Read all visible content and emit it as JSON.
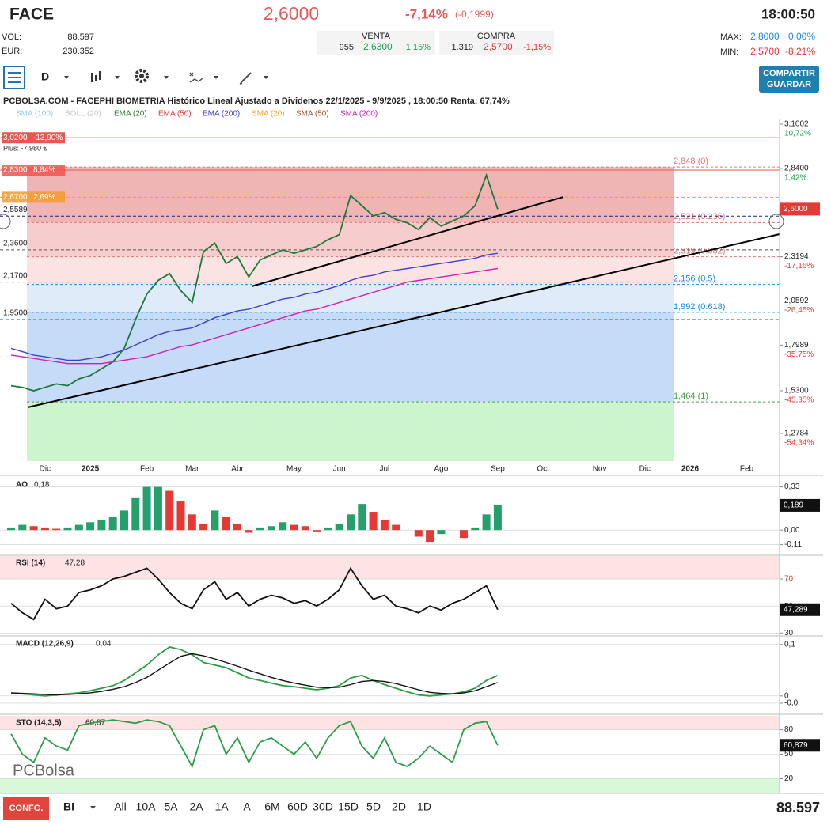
{
  "header": {
    "ticker": "FACE",
    "price": "2,6000",
    "change_pct": "-7,14%",
    "change_abs": "(-0,1999)",
    "time": "18:00:50",
    "vol_label": "VOL:",
    "vol": "88.597",
    "eur_label": "EUR:",
    "eur": "230.352",
    "venta_label": "VENTA",
    "venta_qty": "955",
    "venta_price": "2,6300",
    "venta_pct": "1,15%",
    "compra_label": "COMPRA",
    "compra_qty": "1.319",
    "compra_price": "2,5700",
    "compra_pct": "-1,15%",
    "max_label": "MAX:",
    "max": "2,8000",
    "max_pct": "0,00%",
    "min_label": "MIN:",
    "min": "2,5700",
    "min_pct": "-8,21%"
  },
  "toolbar": {
    "period": "D",
    "share": "COMPARTIR",
    "save": "GUARDAR"
  },
  "footer": {
    "config": "CONFG.",
    "mode": "BI",
    "ranges": [
      "All",
      "10A",
      "5A",
      "2A",
      "1A",
      "A",
      "6M",
      "60D",
      "30D",
      "15D",
      "5D",
      "2D",
      "1D"
    ],
    "volume": "88.597"
  },
  "chart_data": [
    {
      "type": "line",
      "title": "PCBOLSA.COM - FACEPHI BIOMETRIA Histórico Lineal Ajustado a Dividenos 22/1/2025 - 9/9/2025 , 18:00:50 Renta: 67,74%",
      "legend": [
        {
          "label": "SMA (100)",
          "color": "#90caf9"
        },
        {
          "label": "BOLL (20)",
          "color": "#c8c8c8"
        },
        {
          "label": "EMA (20)",
          "color": "#2e7d32"
        },
        {
          "label": "EMA (50)",
          "color": "#e53935"
        },
        {
          "label": "EMA (200)",
          "color": "#3f3fd0"
        },
        {
          "label": "SMA (20)",
          "color": "#f9a825"
        },
        {
          "label": "SMA (50)",
          "color": "#a0522d"
        },
        {
          "label": "SMA (200)",
          "color": "#d020b0"
        }
      ],
      "categories": [
        null,
        null,
        null,
        "Dic",
        null,
        null,
        null,
        "2025",
        null,
        null,
        null,
        null,
        "Feb",
        null,
        null,
        null,
        "Mar",
        null,
        null,
        null,
        "Abr",
        null,
        null,
        null,
        null,
        "May",
        null,
        null,
        null,
        "Jun",
        null,
        null,
        null,
        "Jul",
        null,
        null,
        null,
        null,
        "Ago",
        null,
        null,
        null,
        null,
        "Sep",
        null,
        null,
        null,
        "Oct",
        null,
        null,
        null,
        null,
        "Nov",
        null,
        null,
        null,
        "Dic",
        null,
        null,
        null,
        "2026",
        null,
        null,
        null,
        null,
        "Feb",
        null
      ],
      "series": [
        {
          "color": "#1b7a3a",
          "values": [
            1.56,
            1.55,
            1.53,
            1.55,
            1.57,
            1.56,
            1.6,
            1.62,
            1.66,
            1.7,
            1.78,
            1.95,
            2.1,
            2.18,
            2.22,
            2.12,
            2.05,
            2.35,
            2.4,
            2.28,
            2.32,
            2.2,
            2.3,
            2.33,
            2.36,
            2.34,
            2.36,
            2.38,
            2.42,
            2.45,
            2.68,
            2.62,
            2.56,
            2.58,
            2.54,
            2.52,
            2.48,
            2.55,
            2.5,
            2.53,
            2.56,
            2.62,
            2.8,
            2.6,
            null,
            null,
            null,
            null,
            null,
            null,
            null,
            null,
            null,
            null,
            null,
            null,
            null,
            null,
            null,
            null,
            null,
            null,
            null,
            null,
            null,
            null,
            null
          ]
        },
        {
          "color": "#3f3fd0",
          "values": [
            1.78,
            1.76,
            1.74,
            1.73,
            1.72,
            1.71,
            1.71,
            1.72,
            1.73,
            1.75,
            1.77,
            1.8,
            1.83,
            1.86,
            1.88,
            1.89,
            1.9,
            1.93,
            1.96,
            1.98,
            2.0,
            2.01,
            2.03,
            2.05,
            2.07,
            2.08,
            2.1,
            2.11,
            2.13,
            2.15,
            2.18,
            2.2,
            2.21,
            2.23,
            2.24,
            2.25,
            2.26,
            2.27,
            2.28,
            2.29,
            2.3,
            2.31,
            2.33,
            2.34,
            null,
            null,
            null,
            null,
            null,
            null,
            null,
            null,
            null,
            null,
            null,
            null,
            null,
            null,
            null,
            null,
            null,
            null,
            null,
            null,
            null,
            null,
            null
          ]
        },
        {
          "color": "#d020b0",
          "values": [
            1.74,
            1.73,
            1.72,
            1.71,
            1.7,
            1.69,
            1.69,
            1.69,
            1.69,
            1.7,
            1.71,
            1.72,
            1.73,
            1.75,
            1.77,
            1.79,
            1.8,
            1.82,
            1.84,
            1.86,
            1.88,
            1.9,
            1.92,
            1.94,
            1.96,
            1.98,
            2.0,
            2.01,
            2.03,
            2.05,
            2.07,
            2.09,
            2.11,
            2.13,
            2.15,
            2.17,
            2.18,
            2.19,
            2.2,
            2.21,
            2.22,
            2.23,
            2.24,
            2.25,
            null,
            null,
            null,
            null,
            null,
            null,
            null,
            null,
            null,
            null,
            null,
            null,
            null,
            null,
            null,
            null,
            null,
            null,
            null,
            null,
            null,
            null,
            null
          ]
        }
      ],
      "ylim": [
        1.106,
        3.133
      ],
      "yticks": [
        {
          "value": 3.1002,
          "label": "3,1002"
        },
        {
          "value": 2.84,
          "label": "2,8400"
        },
        {
          "value": 2.3194,
          "label": "2,3194"
        },
        {
          "value": 2.0592,
          "label": "2,0592"
        },
        {
          "value": 1.7989,
          "label": "1,7989"
        },
        {
          "value": 1.53,
          "label": "1,5300"
        },
        {
          "value": 1.2784,
          "label": "1,2784"
        }
      ],
      "ytick_changes": [
        "10,72%",
        "1,42%",
        "-17,16%",
        "-26,45%",
        "-35,75%",
        "-45,35%",
        "-54,34%"
      ],
      "current": {
        "value": 2.6,
        "label": "2,6000"
      },
      "fib_levels": [
        {
          "value": 2.848,
          "label": "2,848 (0)",
          "color": "#e57373"
        },
        {
          "value": 2.521,
          "label": "2,521 (0.236)",
          "color": "#e57373"
        },
        {
          "value": 2.319,
          "label": "2,319 (0.382)",
          "color": "#e57373"
        },
        {
          "value": 2.156,
          "label": "2,156 (0.5)",
          "color": "#1e88e5"
        },
        {
          "value": 1.992,
          "label": "1,992 (0.618)",
          "color": "#1e88e5"
        },
        {
          "value": 1.464,
          "label": "1,464 (1)",
          "color": "#43a047"
        }
      ],
      "left_labels": [
        {
          "value": 3.02,
          "label": "3,0200",
          "note": "-13,90%",
          "color": "#e53935"
        },
        {
          "value": 2.83,
          "label": "2,8300",
          "note": "8,84%",
          "color": "#ef5350"
        },
        {
          "value": 2.67,
          "label": "2,6700",
          "note": "2,69%",
          "color": "#f59b2b"
        },
        {
          "value": 2.5589,
          "label": "2,5589",
          "color": "#1a237e"
        },
        {
          "value": 2.36,
          "label": "2,3600",
          "color": "#555555"
        },
        {
          "value": 2.17,
          "label": "2,1700",
          "color": "#546e7a"
        },
        {
          "value": 1.95,
          "label": "1,9500",
          "color": "#1e88e5"
        }
      ],
      "position_note": "Plus: -7.980 €"
    },
    {
      "type": "bar",
      "title": "AO",
      "title_value": "0,18",
      "color": "#26a06b",
      "down_color": "#e53935",
      "values": [
        0.02,
        0.04,
        0.03,
        0.02,
        0.01,
        0.02,
        0.04,
        0.06,
        0.08,
        0.1,
        0.15,
        0.25,
        0.33,
        0.33,
        0.3,
        0.22,
        0.12,
        0.05,
        0.15,
        0.1,
        0.05,
        -0.02,
        0.02,
        0.03,
        0.06,
        0.04,
        0.03,
        -0.01,
        0.02,
        0.05,
        0.12,
        0.2,
        0.14,
        0.08,
        0.04,
        0.0,
        -0.05,
        -0.09,
        -0.03,
        0.0,
        -0.06,
        0.02,
        0.12,
        0.189
      ],
      "ylim": [
        -0.18,
        0.4
      ],
      "yticks": [
        {
          "value": 0.33,
          "label": "0,33"
        },
        {
          "value": 0,
          "label": "0,00"
        },
        {
          "value": -0.11,
          "label": "-0,11"
        }
      ],
      "current": {
        "value": 0.189,
        "label": "0,189"
      }
    },
    {
      "type": "line",
      "title": "RSI (14)",
      "title_value": "47,28",
      "series": [
        {
          "color": "#111111",
          "values": [
            52,
            45,
            40,
            55,
            48,
            50,
            60,
            62,
            65,
            70,
            72,
            75,
            78,
            70,
            60,
            52,
            48,
            62,
            68,
            55,
            60,
            50,
            55,
            58,
            56,
            52,
            54,
            50,
            55,
            62,
            78,
            65,
            55,
            58,
            50,
            48,
            45,
            50,
            47,
            52,
            55,
            60,
            65,
            47.289
          ]
        }
      ],
      "ylim": [
        29,
        87
      ],
      "yticks": [
        70,
        50,
        30
      ],
      "current": {
        "value": 47.289,
        "label": "47,289"
      }
    },
    {
      "type": "line",
      "title": "MACD (12,26,9)",
      "title_value": "0,04",
      "series": [
        {
          "color": "#2e9d48",
          "values": [
            0.005,
            0.004,
            0.002,
            0.0,
            0.002,
            0.004,
            0.006,
            0.01,
            0.015,
            0.02,
            0.03,
            0.045,
            0.06,
            0.08,
            0.095,
            0.09,
            0.08,
            0.065,
            0.06,
            0.055,
            0.045,
            0.035,
            0.03,
            0.025,
            0.02,
            0.018,
            0.015,
            0.012,
            0.015,
            0.02,
            0.035,
            0.04,
            0.03,
            0.022,
            0.015,
            0.008,
            0.002,
            0.0,
            0.002,
            0.004,
            0.008,
            0.015,
            0.03,
            0.04
          ]
        },
        {
          "color": "#111111",
          "values": [
            0.006,
            0.005,
            0.004,
            0.003,
            0.002,
            0.003,
            0.004,
            0.006,
            0.009,
            0.013,
            0.018,
            0.026,
            0.036,
            0.05,
            0.064,
            0.077,
            0.082,
            0.078,
            0.072,
            0.065,
            0.058,
            0.05,
            0.043,
            0.036,
            0.03,
            0.025,
            0.021,
            0.017,
            0.016,
            0.017,
            0.022,
            0.028,
            0.03,
            0.028,
            0.024,
            0.018,
            0.012,
            0.007,
            0.005,
            0.004,
            0.006,
            0.01,
            0.018,
            0.026
          ]
        }
      ],
      "ylim": [
        -0.031,
        0.115
      ],
      "yticks": [
        {
          "value": 0.1,
          "label": "0,1"
        },
        0,
        {
          "value": -0.014,
          "label": "-0,0"
        }
      ]
    },
    {
      "type": "line",
      "title": "STO (14,3,5)",
      "title_value": "60,87",
      "watermark": "PCBolsa",
      "series": [
        {
          "color": "#2e9d48",
          "values": [
            75,
            50,
            40,
            70,
            60,
            55,
            85,
            88,
            90,
            92,
            90,
            88,
            92,
            90,
            85,
            60,
            35,
            80,
            85,
            50,
            70,
            40,
            65,
            70,
            60,
            50,
            65,
            45,
            70,
            85,
            90,
            60,
            45,
            70,
            40,
            35,
            45,
            60,
            50,
            40,
            80,
            88,
            90,
            60.879
          ]
        }
      ],
      "ylim": [
        3,
        97
      ],
      "yticks": [
        80,
        50,
        20
      ],
      "current": {
        "value": 60.879,
        "label": "60,879"
      }
    }
  ]
}
